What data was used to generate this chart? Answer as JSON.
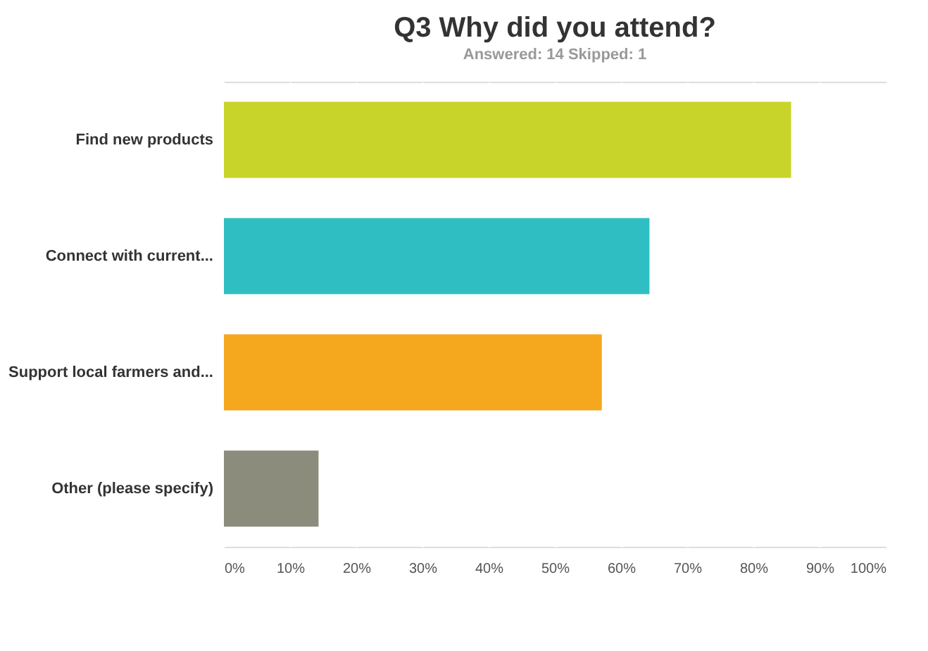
{
  "chart_data": {
    "type": "bar",
    "orientation": "horizontal",
    "title": "Q3 Why did you attend?",
    "subtitle": "Answered: 14    Skipped: 1",
    "categories": [
      "Find new products",
      "Connect with current...",
      "Support local farmers and...",
      "Other (please specify)"
    ],
    "values": [
      85.7,
      64.3,
      57.1,
      14.3
    ],
    "colors": [
      "#c8d42a",
      "#2fbfc2",
      "#f5a71e",
      "#8c8c7c"
    ],
    "xlim": [
      0,
      100
    ],
    "xticks": [
      {
        "value": 0,
        "label": "0%"
      },
      {
        "value": 10,
        "label": "10%"
      },
      {
        "value": 20,
        "label": "20%"
      },
      {
        "value": 30,
        "label": "30%"
      },
      {
        "value": 40,
        "label": "40%"
      },
      {
        "value": 50,
        "label": "50%"
      },
      {
        "value": 60,
        "label": "60%"
      },
      {
        "value": 70,
        "label": "70%"
      },
      {
        "value": 80,
        "label": "80%"
      },
      {
        "value": 90,
        "label": "90%"
      },
      {
        "value": 100,
        "label": "100%"
      }
    ],
    "grid": "x"
  }
}
